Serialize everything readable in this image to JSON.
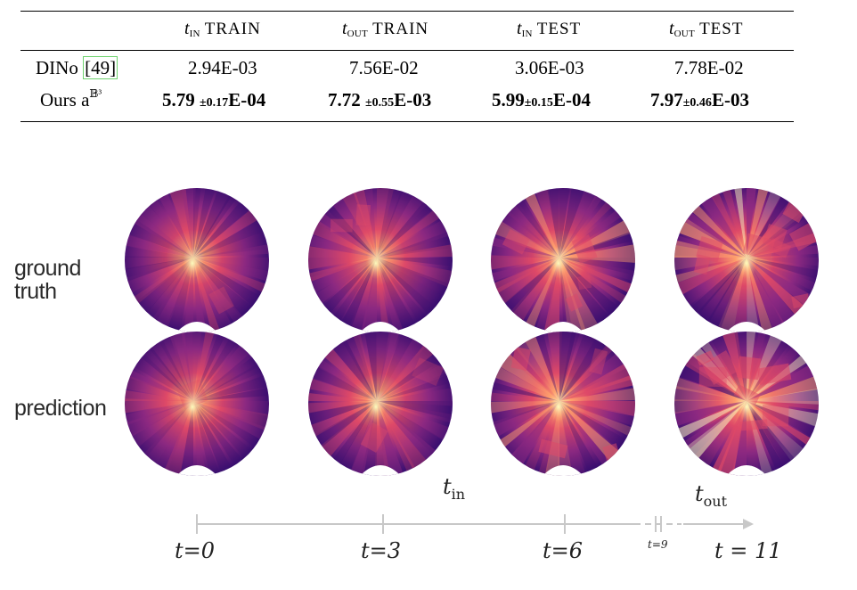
{
  "table": {
    "headers": [
      {
        "var": "t",
        "sub": "IN",
        "split": "TRAIN"
      },
      {
        "var": "t",
        "sub": "OUT",
        "split": "TRAIN"
      },
      {
        "var": "t",
        "sub": "IN",
        "split": "TEST"
      },
      {
        "var": "t",
        "sub": "OUT",
        "split": "TEST"
      }
    ],
    "rows": [
      {
        "method": "DINo",
        "citation": "[49]",
        "values": [
          "2.94E-03",
          "7.56E-02",
          "3.06E-03",
          "7.78E-02"
        ]
      },
      {
        "method": "Ours a",
        "method_sup": "𝔹³",
        "values": [
          {
            "main": "5.79",
            "pm": "±0.17",
            "exp": "E-04"
          },
          {
            "main": "7.72",
            "pm": "±0.55",
            "exp": "E-03"
          },
          {
            "main": "5.99",
            "pm": "±0.15",
            "exp": "E-04"
          },
          {
            "main": "7.97",
            "pm": "±0.46",
            "exp": "E-03"
          }
        ]
      }
    ]
  },
  "figure": {
    "row_labels": [
      "ground\ntruth",
      "prediction"
    ],
    "range_labels": {
      "tin": "t",
      "tin_sub": "in",
      "tout": "t",
      "tout_sub": "out"
    },
    "ticks": [
      {
        "label": "t=0"
      },
      {
        "label": "t=3"
      },
      {
        "label": "t=6"
      },
      {
        "label": "t=9",
        "small": true
      },
      {
        "label": "t = 11"
      }
    ],
    "colormap": [
      "#1a0a2e",
      "#3b0f70",
      "#8c2981",
      "#de4968",
      "#fe9f6d",
      "#fcfdbf"
    ]
  }
}
